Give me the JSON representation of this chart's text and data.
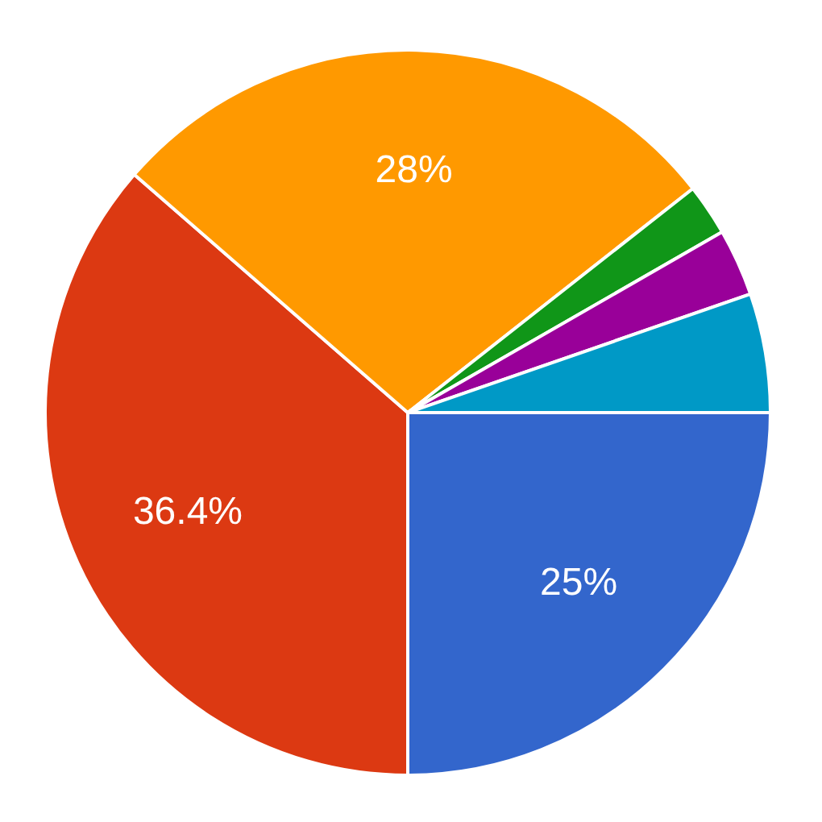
{
  "chart_data": {
    "type": "pie",
    "categories": [
      null,
      null,
      null,
      null,
      null,
      null
    ],
    "values": [
      25,
      36.4,
      28,
      2.3,
      3,
      5.3
    ],
    "colors": [
      "#3366cc",
      "#dc3912",
      "#ff9900",
      "#109618",
      "#990099",
      "#0099c6"
    ],
    "value_labels": [
      "25%",
      "36.4%",
      "28%",
      null,
      null,
      null
    ]
  }
}
